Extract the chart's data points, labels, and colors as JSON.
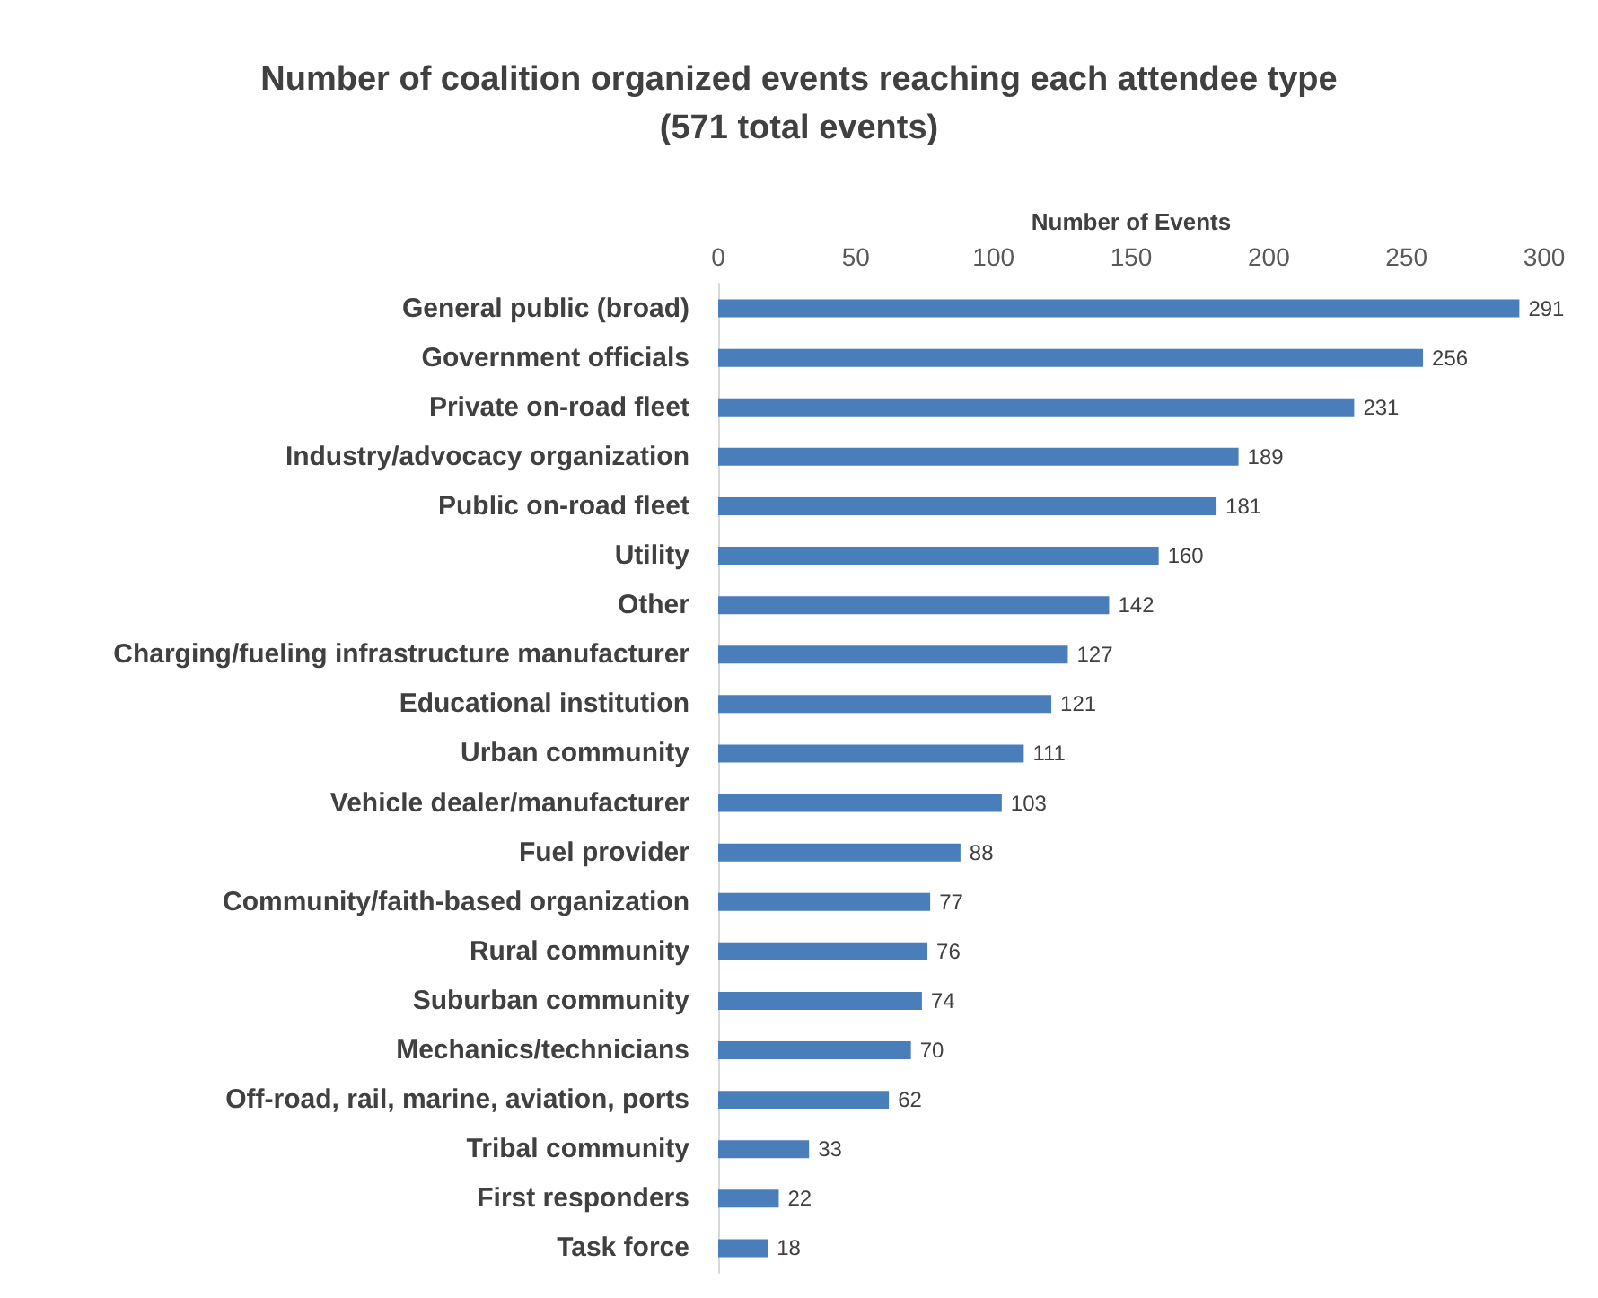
{
  "chart_data": {
    "type": "bar",
    "orientation": "horizontal",
    "title": "Number of coalition organized events reaching each attendee type",
    "subtitle": "(571 total events)",
    "xlabel": "Number of Events",
    "categories": [
      "General public (broad)",
      "Government officials",
      "Private on-road fleet",
      "Industry/advocacy organization",
      "Public on-road fleet",
      "Utility",
      "Other",
      "Charging/fueling infrastructure manufacturer",
      "Educational institution",
      "Urban community",
      "Vehicle dealer/manufacturer",
      "Fuel provider",
      "Community/faith-based organization",
      "Rural community",
      "Suburban community",
      "Mechanics/technicians",
      "Off-road, rail, marine, aviation, ports",
      "Tribal community",
      "First responders",
      "Task force"
    ],
    "values": [
      291,
      256,
      231,
      189,
      181,
      160,
      142,
      127,
      121,
      111,
      103,
      88,
      77,
      76,
      74,
      70,
      62,
      33,
      22,
      18
    ],
    "color": "#4a7ebb",
    "xlim": [
      0,
      300
    ],
    "xticks": [
      0,
      50,
      100,
      150,
      200,
      250,
      300
    ],
    "data_labels": true
  }
}
